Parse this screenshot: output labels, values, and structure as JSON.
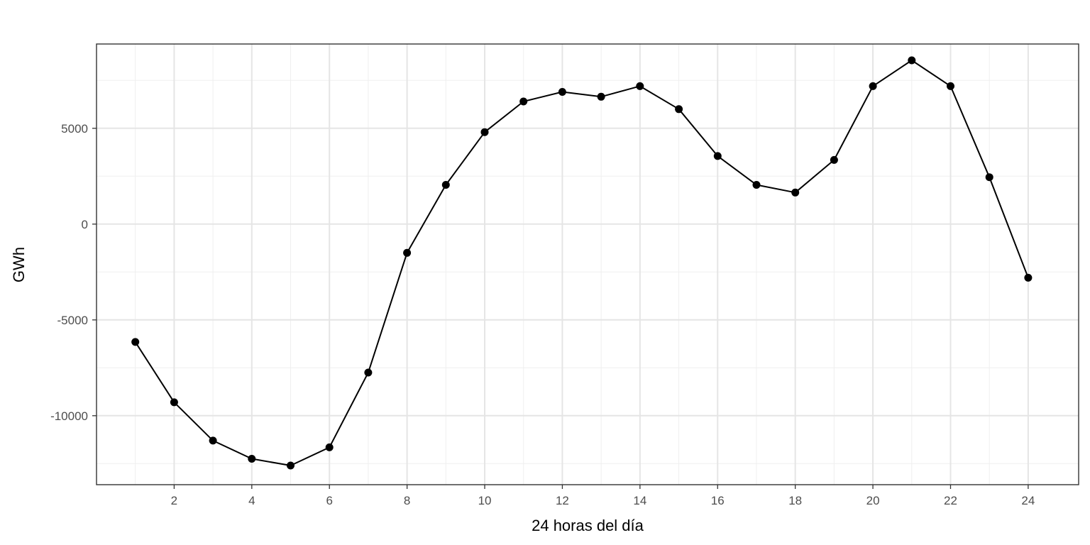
{
  "chart_data": {
    "type": "line",
    "title": "",
    "xlabel": "24 horas del día",
    "ylabel": "GWh",
    "xlim": [
      0,
      25.3
    ],
    "ylim": [
      -13600,
      9400
    ],
    "x_ticks": [
      2,
      4,
      6,
      8,
      10,
      12,
      14,
      16,
      18,
      20,
      22,
      24
    ],
    "x_tick_labels": [
      "2",
      "4",
      "6",
      "8",
      "10",
      "12",
      "14",
      "16",
      "18",
      "20",
      "22",
      "24"
    ],
    "y_ticks": [
      -10000,
      -5000,
      0,
      5000
    ],
    "y_tick_labels": [
      "-10000",
      "-5000",
      "0",
      "5000"
    ],
    "grid": true,
    "legend": "none",
    "line_color": "#000000",
    "x": [
      1,
      2,
      3,
      4,
      5,
      6,
      7,
      8,
      9,
      10,
      11,
      12,
      13,
      14,
      15,
      16,
      17,
      18,
      19,
      20,
      21,
      22,
      23,
      24
    ],
    "values": [
      -6150,
      -9300,
      -11300,
      -12250,
      -12600,
      -11650,
      -7750,
      -1500,
      2050,
      4800,
      6400,
      6900,
      6650,
      7200,
      6000,
      3550,
      2050,
      1650,
      3350,
      7200,
      8550,
      7200,
      2450,
      -2800
    ]
  }
}
